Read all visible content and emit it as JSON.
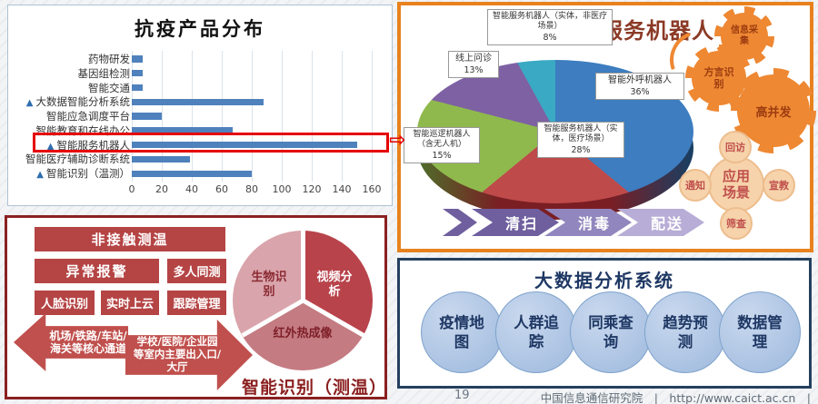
{
  "slide": {
    "footer_page_number": "19",
    "footer_text": "中国信息通信研究院　|　http://www.caict.ac.cn　|"
  },
  "chart_data": [
    {
      "type": "bar",
      "orientation": "horizontal",
      "title": "抗疫产品分布",
      "categories": [
        "药物研发",
        "基因组检测",
        "智能交通",
        "大数据智能分析系统",
        "智能应急调度平台",
        "智能教育和在线办公",
        "智能服务机器人",
        "智能医疗辅助诊断系统",
        "智能识别（温测）"
      ],
      "values": [
        7,
        7,
        7,
        88,
        20,
        67,
        150,
        39,
        80
      ],
      "markers": [
        false,
        false,
        false,
        true,
        false,
        false,
        true,
        false,
        true
      ],
      "highlighted_category": "智能服务机器人",
      "x_ticks": [
        "0",
        "20",
        "40",
        "60",
        "80",
        "100",
        "120",
        "140",
        "160"
      ],
      "xlim": [
        0,
        160
      ],
      "bar_color": "#4f81bd",
      "grid": true
    },
    {
      "type": "pie",
      "style": "3d",
      "title": "智能服务机器人",
      "labels": [
        "智能外呼机器人",
        "智能服务机器人（实体，医疗场景）",
        "智能巡逻机器人（含无人机）",
        "线上问诊",
        "智能服务机器人（实体，非医疗场景）"
      ],
      "values": [
        36,
        28,
        15,
        13,
        8
      ],
      "display_values": [
        "36%",
        "28%",
        "15%",
        "13%",
        "8%"
      ],
      "colors": [
        "#3d7dc0",
        "#bf4a4a",
        "#8fb94d",
        "#7e61a3",
        "#3aa9c4"
      ]
    }
  ],
  "robot_panel": {
    "title": "智能服务机器人",
    "gears": [
      "信息采集",
      "方言识别",
      "高并发"
    ],
    "scenario_center": "应用场景",
    "scenarios": [
      "回访",
      "通知",
      "宣教",
      "筛查"
    ],
    "flow_steps": [
      "清扫",
      "消毒",
      "配送"
    ],
    "accent_color": "#e8821e"
  },
  "recognition_panel": {
    "title": "智能识别（测温）",
    "features": [
      "非接触测温",
      "异常报警",
      "多人同测",
      "人脸识别",
      "实时上云",
      "跟踪管理"
    ],
    "left_arrow_text": "机场/铁路/车站/海关等核心通道",
    "right_arrow_text": "学校/医院/企业园等室内主要出入口/大厅",
    "cycle_segments": [
      "生物识别",
      "视频分析",
      "红外热成像"
    ],
    "accent_color": "#8b2121"
  },
  "bigdata_panel": {
    "title": "大数据分析系统",
    "items": [
      "疫情地图",
      "人群追踪",
      "同乘查询",
      "趋势预测",
      "数据管理"
    ],
    "accent_color": "#24405f"
  }
}
